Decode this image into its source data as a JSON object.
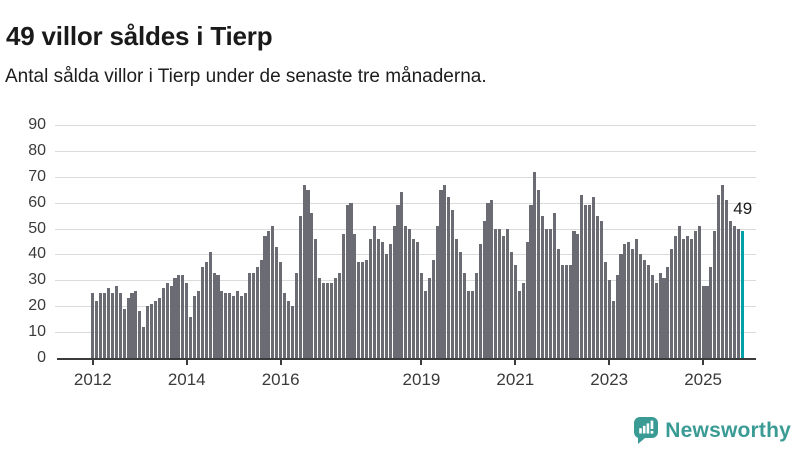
{
  "header": {
    "title": "49 villor såldes i Tierp",
    "subtitle": "Antal sålda villor i Tierp under de senaste tre månaderna."
  },
  "chart_data": {
    "type": "bar",
    "title": "49 villor såldes i Tierp",
    "subtitle": "Antal sålda villor i Tierp under de senaste tre månaderna.",
    "x_start": "2012-01",
    "x_end": "2025-11",
    "x_freq": "monthly",
    "values": [
      25,
      22,
      25,
      25,
      27,
      25,
      28,
      25,
      19,
      23,
      25,
      26,
      18,
      12,
      20,
      21,
      22,
      23,
      27,
      29,
      28,
      31,
      32,
      32,
      29,
      16,
      24,
      26,
      35,
      37,
      41,
      33,
      32,
      26,
      25,
      25,
      24,
      26,
      24,
      25,
      33,
      33,
      35,
      38,
      47,
      49,
      51,
      43,
      37,
      25,
      22,
      20,
      33,
      55,
      67,
      65,
      56,
      46,
      31,
      29,
      29,
      29,
      31,
      33,
      48,
      59,
      60,
      48,
      37,
      37,
      38,
      46,
      51,
      46,
      45,
      40,
      44,
      51,
      59,
      64,
      51,
      50,
      46,
      45,
      33,
      26,
      31,
      38,
      51,
      65,
      67,
      62,
      57,
      46,
      41,
      33,
      26,
      26,
      33,
      44,
      53,
      60,
      61,
      50,
      50,
      47,
      50,
      41,
      36,
      26,
      29,
      45,
      59,
      72,
      65,
      55,
      50,
      50,
      56,
      42,
      36,
      36,
      36,
      49,
      48,
      63,
      59,
      59,
      62,
      55,
      53,
      37,
      30,
      22,
      32,
      40,
      44,
      45,
      42,
      46,
      40,
      38,
      36,
      32,
      29,
      33,
      31,
      35,
      42,
      47,
      51,
      46,
      47,
      46,
      49,
      51,
      28,
      28,
      35,
      49,
      63,
      67,
      61,
      53,
      51,
      50,
      49
    ],
    "ylim": [
      0,
      90
    ],
    "yticks": [
      0,
      10,
      20,
      30,
      40,
      50,
      60,
      70,
      80,
      90
    ],
    "xticks": [
      {
        "label": "2012",
        "month_index": 0
      },
      {
        "label": "2014",
        "month_index": 24
      },
      {
        "label": "2016",
        "month_index": 48
      },
      {
        "label": "2019",
        "month_index": 84
      },
      {
        "label": "2021",
        "month_index": 108
      },
      {
        "label": "2023",
        "month_index": 132
      },
      {
        "label": "2025",
        "month_index": 156
      }
    ],
    "grid": true,
    "legend": "none",
    "bar_color": "#6b6b73",
    "highlight_color": "#00a2a7",
    "highlight_index": 166,
    "annotation": {
      "text": "49",
      "month_index": 166
    }
  },
  "branding": {
    "name": "Newsworthy",
    "color": "#3a9b94",
    "logo_icon": "speech-bubble-bar-chart-icon"
  }
}
